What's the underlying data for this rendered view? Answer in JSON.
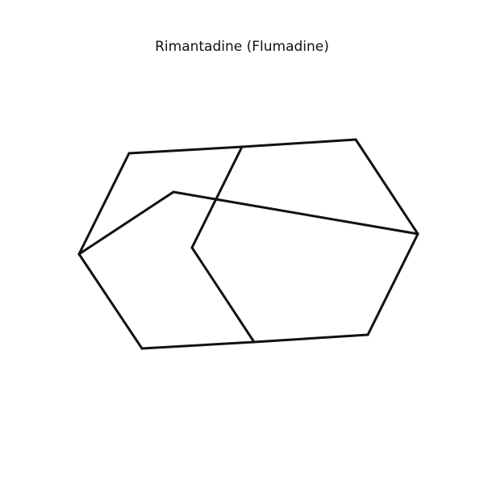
{
  "diagram": {
    "title": "Rimantadine (Flumadine)",
    "line_color": "#111111",
    "background_color": "#ffffff"
  }
}
